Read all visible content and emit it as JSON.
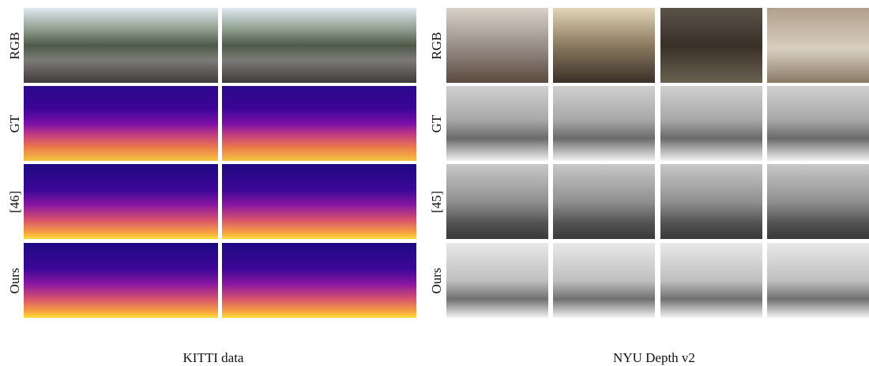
{
  "panels": [
    {
      "caption": "KITTI data",
      "rows": [
        "RGB",
        "GT",
        "[46]",
        "Ours"
      ]
    },
    {
      "caption": "NYU Depth v2",
      "rows": [
        "RGB",
        "GT",
        "[45]",
        "Ours"
      ]
    }
  ]
}
